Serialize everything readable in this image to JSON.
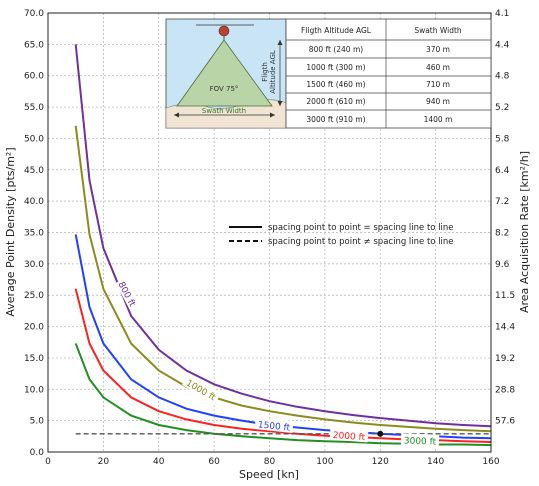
{
  "chart_data": {
    "type": "line",
    "xlabel": "Speed [kn]",
    "ylabel": "Average Point Density [pts/m²]",
    "y2label": "Area Acquisition Rate [km²/h]",
    "xlim": [
      0,
      160
    ],
    "ylim": [
      0,
      70
    ],
    "grid": true,
    "x_ticks": [
      "0",
      "20",
      "40",
      "60",
      "80",
      "100",
      "120",
      "140",
      "160"
    ],
    "y_ticks": [
      "0.0",
      "5.0",
      "10.0",
      "15.0",
      "20.0",
      "25.0",
      "30.0",
      "35.0",
      "40.0",
      "45.0",
      "50.0",
      "55.0",
      "60.0",
      "65.0",
      "70.0"
    ],
    "y2_ticks": [
      "4.1",
      "4.4",
      "4.8",
      "5.2",
      "5.8",
      "6.4",
      "7.2",
      "8.2",
      "9.6",
      "11.5",
      "14.4",
      "19.2",
      "28.8",
      "57.6"
    ],
    "x": [
      10,
      15,
      20,
      30,
      40,
      50,
      60,
      70,
      80,
      90,
      100,
      110,
      120,
      130,
      140,
      150,
      160
    ],
    "series": [
      {
        "name": "800 ft",
        "color": "#7030a0",
        "values": [
          65.0,
          43.3,
          32.5,
          21.7,
          16.3,
          13.0,
          10.8,
          9.3,
          8.1,
          7.2,
          6.5,
          5.9,
          5.4,
          5.0,
          4.6,
          4.3,
          4.1
        ]
      },
      {
        "name": "1000 ft",
        "color": "#8c8c1e",
        "values": [
          52.0,
          34.7,
          26.0,
          17.3,
          13.0,
          10.4,
          8.7,
          7.4,
          6.5,
          5.8,
          5.2,
          4.7,
          4.3,
          4.0,
          3.7,
          3.5,
          3.3
        ]
      },
      {
        "name": "1500 ft",
        "color": "#2040ff",
        "values": [
          34.7,
          23.1,
          17.3,
          11.6,
          8.7,
          6.9,
          5.8,
          5.0,
          4.3,
          3.9,
          3.5,
          3.2,
          2.9,
          2.7,
          2.5,
          2.3,
          2.2
        ]
      },
      {
        "name": "2000 ft",
        "color": "#ff2020",
        "values": [
          26.0,
          17.3,
          13.0,
          8.7,
          6.5,
          5.2,
          4.3,
          3.7,
          3.3,
          2.9,
          2.6,
          2.4,
          2.2,
          2.0,
          1.9,
          1.7,
          1.6
        ]
      },
      {
        "name": "3000 ft",
        "color": "#209020",
        "values": [
          17.3,
          11.6,
          8.7,
          5.8,
          4.3,
          3.5,
          2.9,
          2.5,
          2.2,
          1.9,
          1.7,
          1.6,
          1.4,
          1.3,
          1.2,
          1.2,
          1.1
        ]
      }
    ],
    "dashed_line": {
      "y": 2.9,
      "x": [
        10,
        160
      ],
      "color": "#555555"
    },
    "marker_point": {
      "x": 120,
      "y": 2.9
    },
    "legend": {
      "placement": "right",
      "solid": "spacing point to point = spacing line to line",
      "dashed": "spacing point to point ≠ spacing line to line"
    }
  },
  "inset": {
    "fov_label": "FOV 75°",
    "swath_label": "Swath Width",
    "altitude_label_1": "Fligth",
    "altitude_label_2": "Altitude AGL",
    "table_headers": [
      "Fligth Altitude AGL",
      "Swath Width"
    ],
    "table_rows": [
      [
        "800 ft (240 m)",
        "370 m"
      ],
      [
        "1000 ft (300 m)",
        "460 m"
      ],
      [
        "1500 ft (460 m)",
        "710 m"
      ],
      [
        "2000 ft (610 m)",
        "940 m"
      ],
      [
        "3000 ft (910 m)",
        "1400 m"
      ]
    ]
  }
}
